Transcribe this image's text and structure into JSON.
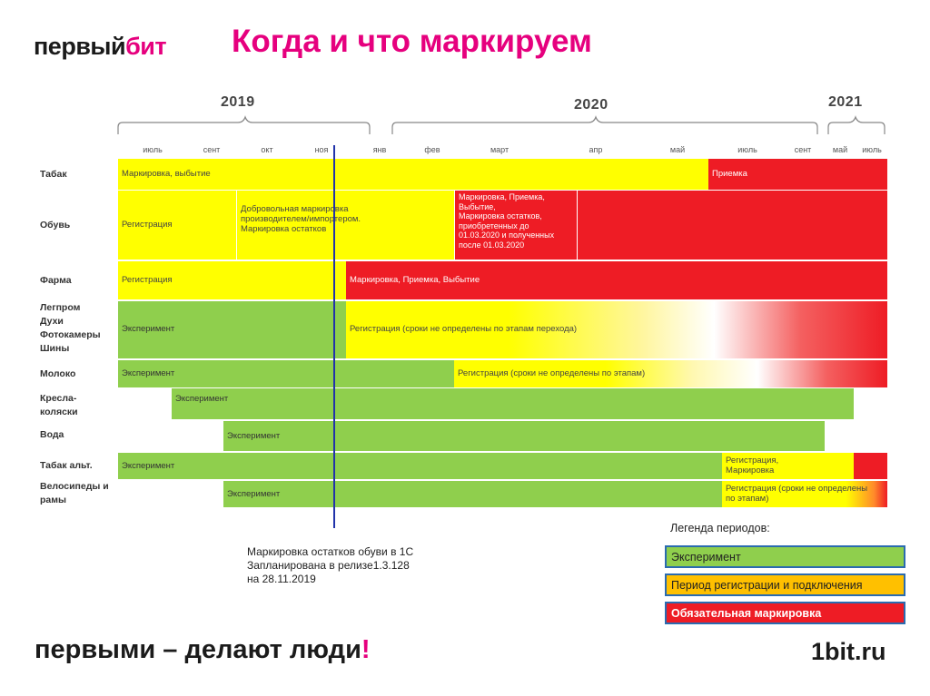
{
  "header": {
    "logo": "первый",
    "logo_accent": "бит",
    "title": "Когда и что маркируем"
  },
  "timeline": {
    "years": [
      "2019",
      "2020",
      "2021"
    ],
    "months": [
      "июль",
      "сент",
      "окт",
      "ноя",
      "янв",
      "фев",
      "март",
      "апр",
      "май",
      "июль",
      "сент",
      "май",
      "июль"
    ]
  },
  "rows": [
    {
      "label": "Табак",
      "bars": [
        {
          "color": "yellow",
          "text": "Маркировка, выбытие"
        },
        {
          "color": "red",
          "text": "Приемка"
        }
      ]
    },
    {
      "label": "Обувь",
      "bars": [
        {
          "color": "yellow",
          "text": "Регистрация"
        },
        {
          "color": "yellow",
          "text": "Добровольная маркировка\nпроизводителем/импортером.\nМаркировка остатков"
        },
        {
          "color": "red",
          "text": "Маркировка, Приемка,\nВыбытие,\nМаркировка остатков,\nприобретенных  до\n01.03.2020 и полученных\nпосле 01.03.2020"
        },
        {
          "color": "red",
          "text": ""
        }
      ]
    },
    {
      "label": "Фарма",
      "bars": [
        {
          "color": "yellow",
          "text": "Регистрация"
        },
        {
          "color": "red",
          "text": "Маркировка, Приемка, Выбытие"
        }
      ]
    },
    {
      "label": "Легпром\nДухи\nФотокамеры\nШины",
      "bars": [
        {
          "color": "green",
          "text": "Эксперимент"
        },
        {
          "color": "grad",
          "text": "Регистрация (сроки не определены по этапам перехода)"
        }
      ]
    },
    {
      "label": "Молоко",
      "bars": [
        {
          "color": "green",
          "text": "Эксперимент"
        },
        {
          "color": "grad",
          "text": "Регистрация (сроки не определены по этапам)"
        }
      ]
    },
    {
      "label": "Кресла-\nколяски",
      "bars": [
        {
          "color": "green",
          "text": "Эксперимент"
        }
      ]
    },
    {
      "label": "Вода",
      "bars": [
        {
          "color": "green",
          "text": "Эксперимент"
        }
      ]
    },
    {
      "label": "Табак альт.",
      "bars": [
        {
          "color": "green",
          "text": "Эксперимент"
        },
        {
          "color": "yellow",
          "text": "Регистрация,\nМаркировка"
        },
        {
          "color": "red",
          "text": ""
        }
      ]
    },
    {
      "label": "Велосипеды и\nрамы",
      "bars": [
        {
          "color": "green",
          "text": "Эксперимент"
        },
        {
          "color": "yellow",
          "text": "Регистрация (сроки не определены\nпо этапам)"
        }
      ]
    }
  ],
  "note": "Маркировка остатков обуви в 1С\nЗапланирована в релизе1.3.128\nна 28.11.2019",
  "legend": {
    "title": "Легенда периодов:",
    "experiment": "Эксперимент",
    "registration": "Период регистрации и подключения",
    "mandatory": "Обязательная маркировка"
  },
  "footer": {
    "slogan": "первыми – делают люди",
    "slogan_bang": "!",
    "site": "1bit.ru"
  },
  "colors": {
    "accent": "#e6007e",
    "yellow": "#ffff00",
    "red": "#ee1c25",
    "green": "#8fcf4d",
    "legend_yellow": "#ffc000"
  }
}
